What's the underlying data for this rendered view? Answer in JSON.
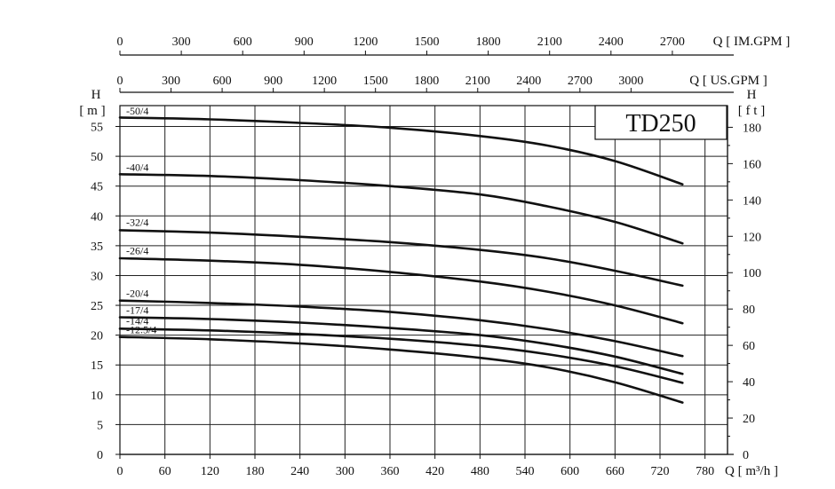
{
  "chart_data": {
    "type": "line",
    "model": "TD250",
    "x": {
      "unit_label": "Q [ m³/h ]",
      "ticks": [
        0,
        60,
        120,
        180,
        240,
        300,
        360,
        420,
        480,
        540,
        600,
        660,
        720,
        780
      ],
      "range": [
        0,
        810
      ]
    },
    "x_top_us": {
      "unit_label": "Q [ US.GPM ]",
      "ticks": [
        0,
        300,
        600,
        900,
        1200,
        1500,
        1800,
        2100,
        2400,
        2700,
        3000
      ]
    },
    "x_top_im": {
      "unit_label": "Q [ IM.GPM ]",
      "ticks": [
        0,
        300,
        600,
        900,
        1200,
        1500,
        1800,
        2100,
        2400,
        2700
      ]
    },
    "y_left": {
      "title": "H",
      "unit": "[ m ]",
      "ticks": [
        0,
        5,
        10,
        15,
        20,
        25,
        30,
        35,
        40,
        45,
        50,
        55
      ],
      "range": [
        0,
        58.5
      ]
    },
    "y_right": {
      "title": "H",
      "unit": "[ f t ]",
      "ticks": [
        0,
        20,
        40,
        60,
        80,
        100,
        120,
        140,
        160,
        180
      ]
    },
    "grid": true,
    "series": [
      {
        "name": "-50/4",
        "label_at": 56.4,
        "points": [
          [
            0,
            56.5
          ],
          [
            120,
            56.2
          ],
          [
            240,
            55.6
          ],
          [
            360,
            54.8
          ],
          [
            480,
            53.4
          ],
          [
            570,
            51.8
          ],
          [
            660,
            49.2
          ],
          [
            750,
            45.3
          ]
        ]
      },
      {
        "name": "-40/4",
        "label_at": 47.0,
        "points": [
          [
            0,
            47.0
          ],
          [
            120,
            46.7
          ],
          [
            240,
            46.0
          ],
          [
            360,
            45.0
          ],
          [
            480,
            43.6
          ],
          [
            570,
            41.6
          ],
          [
            660,
            39.0
          ],
          [
            750,
            35.4
          ]
        ]
      },
      {
        "name": "-32/4",
        "label_at": 37.7,
        "points": [
          [
            0,
            37.6
          ],
          [
            120,
            37.2
          ],
          [
            240,
            36.5
          ],
          [
            360,
            35.6
          ],
          [
            480,
            34.3
          ],
          [
            570,
            32.9
          ],
          [
            660,
            30.8
          ],
          [
            750,
            28.3
          ]
        ]
      },
      {
        "name": "-26/4",
        "label_at": 33.0,
        "points": [
          [
            0,
            32.9
          ],
          [
            120,
            32.5
          ],
          [
            240,
            31.8
          ],
          [
            360,
            30.6
          ],
          [
            480,
            29.0
          ],
          [
            570,
            27.3
          ],
          [
            660,
            25.0
          ],
          [
            750,
            22.0
          ]
        ]
      },
      {
        "name": "-20/4",
        "label_at": 25.8,
        "points": [
          [
            0,
            25.8
          ],
          [
            120,
            25.4
          ],
          [
            240,
            24.8
          ],
          [
            360,
            23.9
          ],
          [
            480,
            22.5
          ],
          [
            570,
            21.0
          ],
          [
            660,
            19.0
          ],
          [
            750,
            16.5
          ]
        ]
      },
      {
        "name": "-17/4",
        "label_at": 23.0,
        "points": [
          [
            0,
            23.0
          ],
          [
            120,
            22.7
          ],
          [
            240,
            22.1
          ],
          [
            360,
            21.2
          ],
          [
            480,
            20.0
          ],
          [
            570,
            18.5
          ],
          [
            660,
            16.4
          ],
          [
            750,
            13.5
          ]
        ]
      },
      {
        "name": "-14/4",
        "label_at": 21.2,
        "points": [
          [
            0,
            21.1
          ],
          [
            120,
            20.8
          ],
          [
            240,
            20.2
          ],
          [
            360,
            19.4
          ],
          [
            480,
            18.2
          ],
          [
            570,
            16.8
          ],
          [
            660,
            14.8
          ],
          [
            750,
            12.0
          ]
        ]
      },
      {
        "name": "-12.5/4",
        "label_at": 19.7,
        "points": [
          [
            0,
            19.7
          ],
          [
            120,
            19.3
          ],
          [
            240,
            18.6
          ],
          [
            360,
            17.6
          ],
          [
            480,
            16.2
          ],
          [
            570,
            14.6
          ],
          [
            660,
            12.1
          ],
          [
            750,
            8.7
          ]
        ]
      }
    ]
  }
}
